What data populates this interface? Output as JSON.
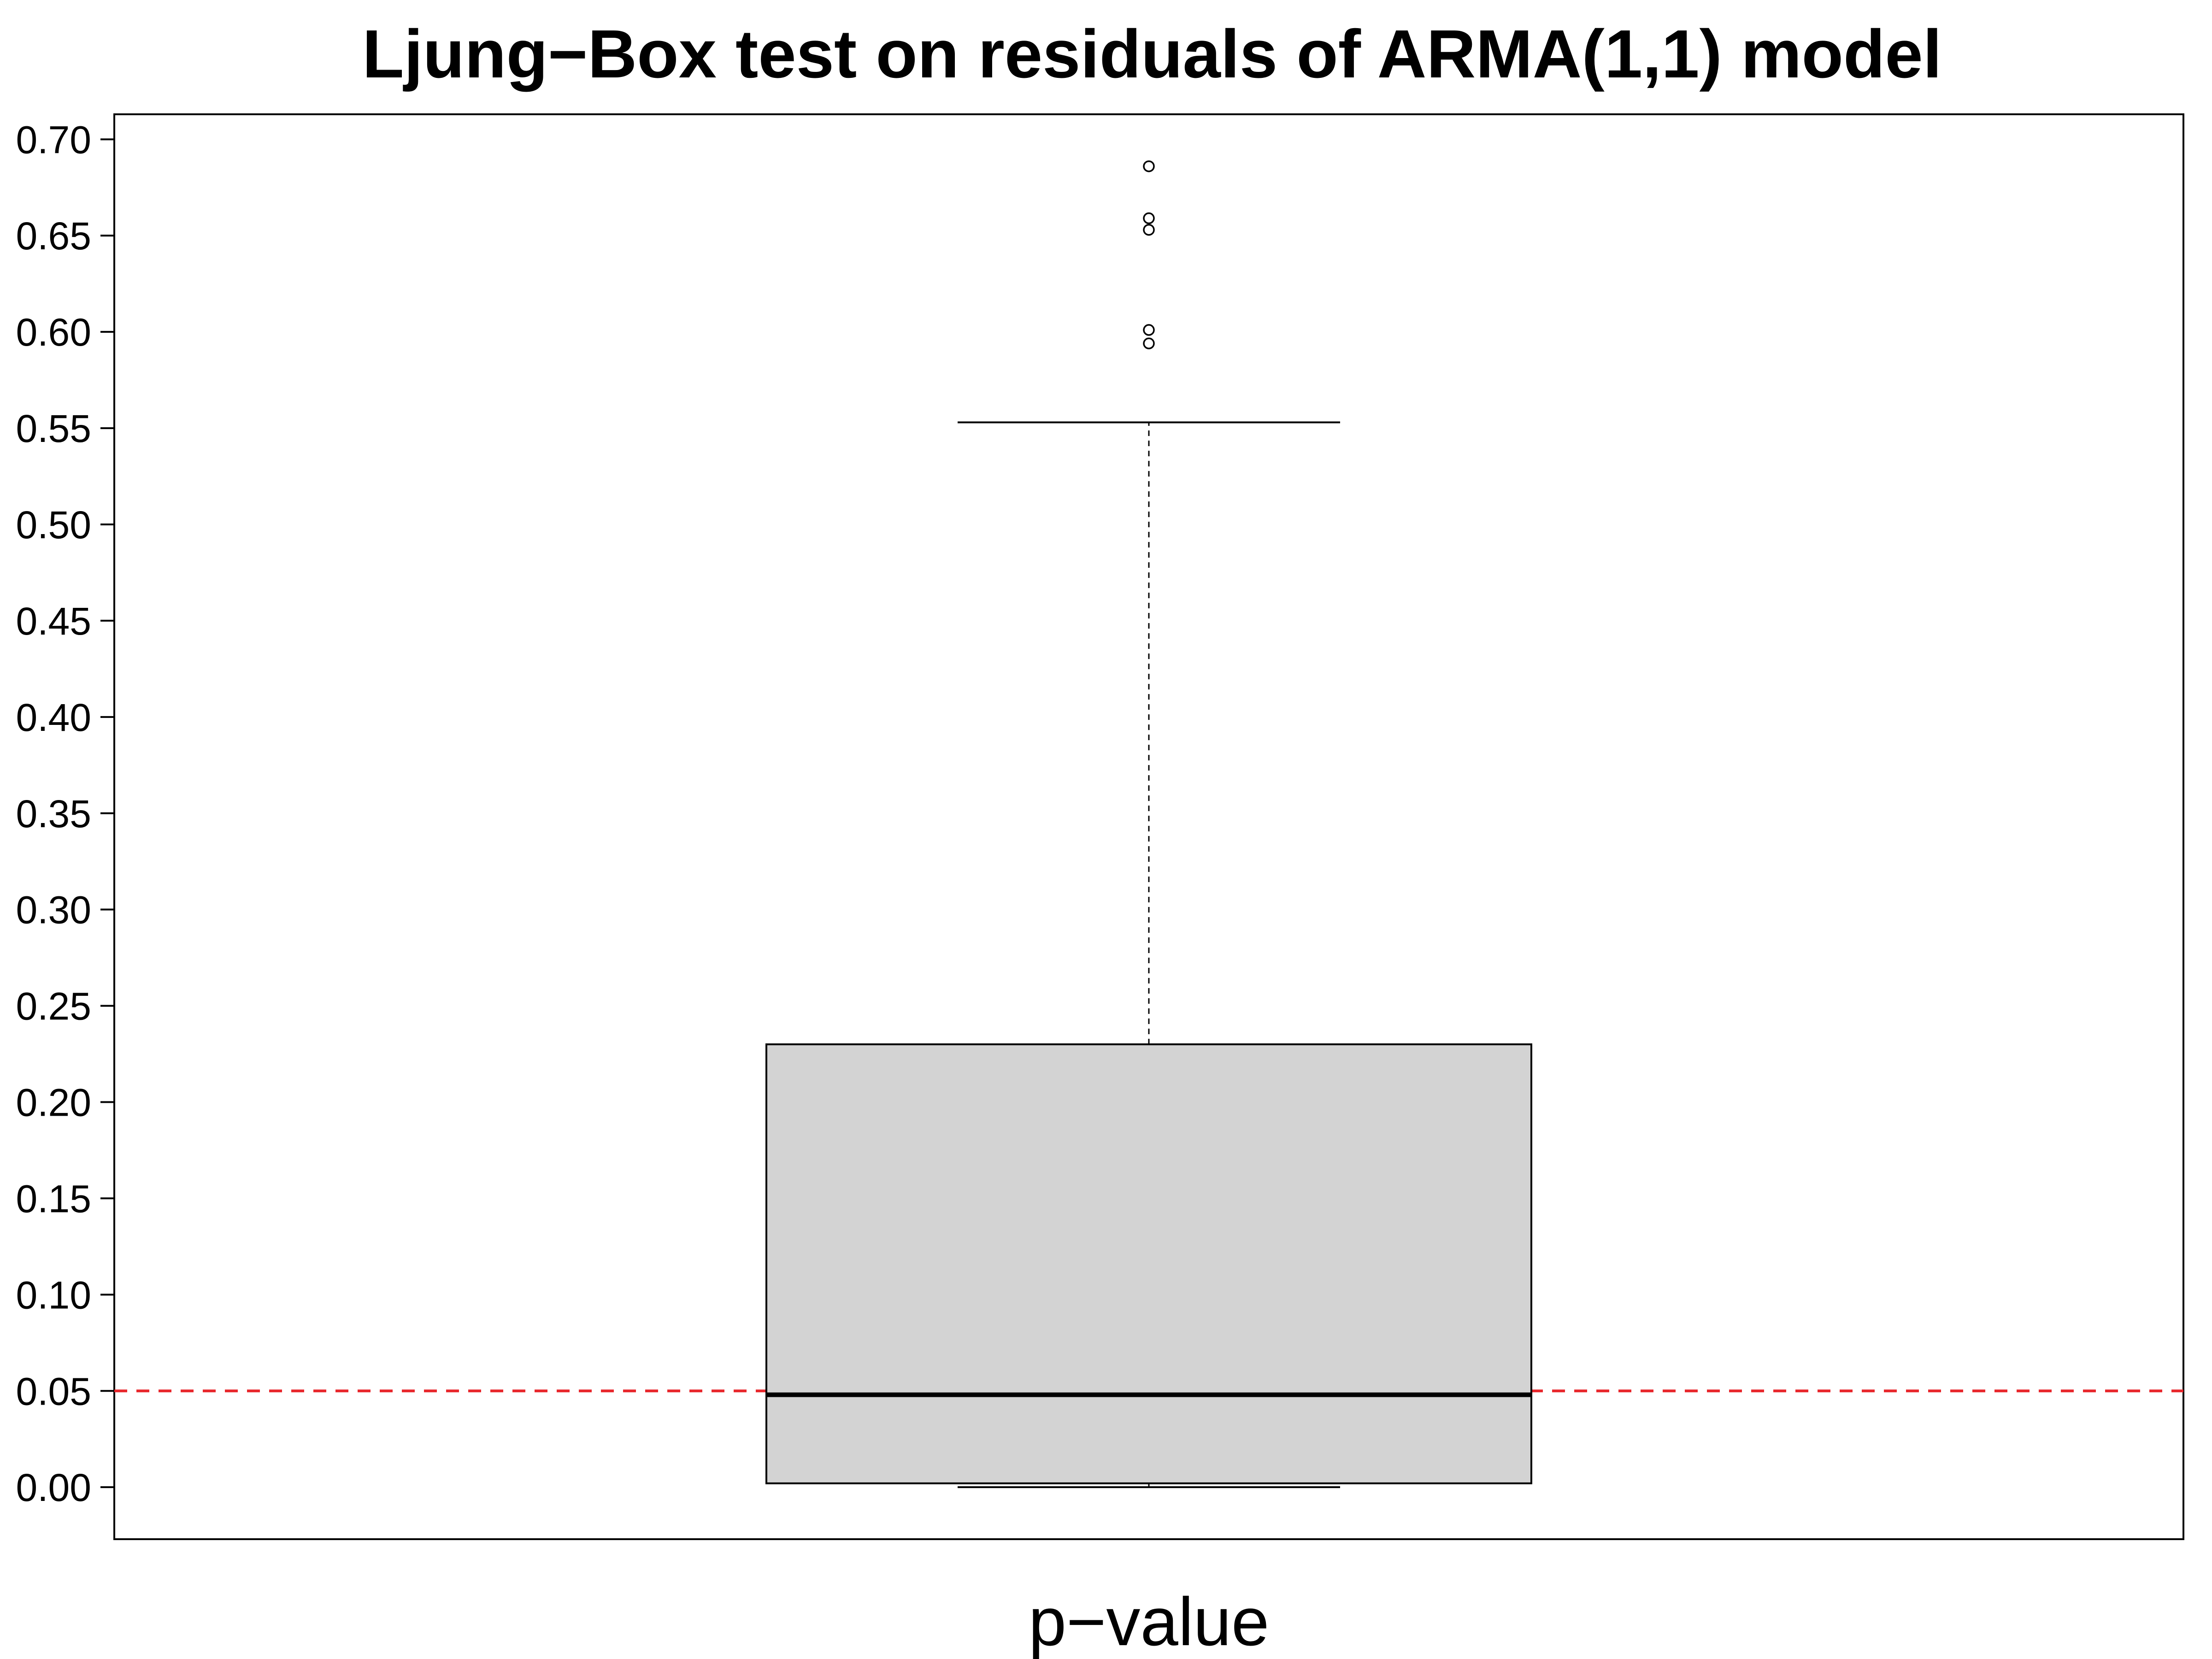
{
  "chart_data": {
    "type": "box",
    "title": "Ljung−Box test on residuals of ARMA(1,1) model",
    "xlabel": "p−value",
    "ylabel": "",
    "ylim": [
      -0.027,
      0.713
    ],
    "y_ticks": [
      0.0,
      0.05,
      0.1,
      0.15,
      0.2,
      0.25,
      0.3,
      0.35,
      0.4,
      0.45,
      0.5,
      0.55,
      0.6,
      0.65,
      0.7
    ],
    "y_tick_labels": [
      "0.00",
      "0.05",
      "0.10",
      "0.15",
      "0.20",
      "0.25",
      "0.30",
      "0.35",
      "0.40",
      "0.45",
      "0.50",
      "0.55",
      "0.60",
      "0.65",
      "0.70"
    ],
    "grid": false,
    "box": {
      "whisker_low": 0.0,
      "q1": 0.002,
      "median": 0.048,
      "q3": 0.23,
      "whisker_high": 0.553
    },
    "outliers": [
      0.686,
      0.659,
      0.653,
      0.601,
      0.594
    ],
    "reference_line": {
      "value": 0.05,
      "color": "#e8262b",
      "style": "dashed"
    },
    "colors": {
      "box_fill": "#d3d3d3",
      "stroke": "#000000"
    }
  }
}
